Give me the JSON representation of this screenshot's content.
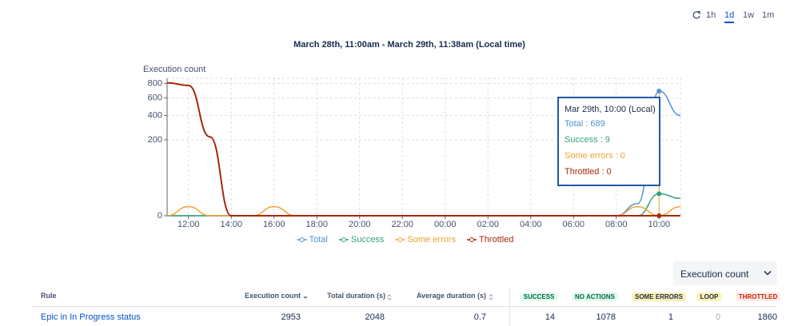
{
  "controls": {
    "ranges": [
      "1h",
      "1d",
      "1w",
      "1m"
    ],
    "selected": 1
  },
  "chart_data": {
    "type": "line",
    "title": "March 28th, 11:00am - March 29th, 11:38am (Local time)",
    "y_label": "Execution count",
    "categories": [
      null,
      "12:00",
      null,
      "14:00",
      null,
      "16:00",
      null,
      "18:00",
      null,
      "20:00",
      null,
      "22:00",
      null,
      "00:00",
      null,
      "02:00",
      null,
      "04:00",
      null,
      "06:00",
      null,
      "08:00",
      null,
      "10:00",
      null
    ],
    "series": [
      {
        "name": "Total",
        "color": "#4a94d4",
        "values": [
          0,
          0,
          0,
          0,
          0,
          0,
          0,
          0,
          0,
          0,
          0,
          0,
          0,
          0,
          0,
          0,
          0,
          0,
          0,
          0,
          0,
          0,
          2,
          689,
          400
        ]
      },
      {
        "name": "Success",
        "color": "#36a27a",
        "values": [
          0,
          0,
          0,
          0,
          0,
          0,
          0,
          0,
          0,
          0,
          0,
          0,
          0,
          0,
          0,
          0,
          0,
          0,
          0,
          0,
          0,
          0,
          0,
          9,
          5
        ]
      },
      {
        "name": "Some errors",
        "color": "#f0a232",
        "values": [
          0,
          1,
          0,
          0,
          0,
          1,
          0,
          0,
          0,
          0,
          0,
          0,
          0,
          0,
          0,
          0,
          0,
          0,
          0,
          0,
          0,
          0,
          1,
          0,
          1
        ]
      },
      {
        "name": "Throttled",
        "color": "#a8280c",
        "values": [
          810,
          770,
          220,
          0,
          0,
          0,
          0,
          0,
          0,
          0,
          0,
          0,
          0,
          0,
          0,
          0,
          0,
          0,
          0,
          0,
          0,
          0,
          0,
          0,
          0
        ]
      }
    ],
    "ylim": [
      0,
      880
    ],
    "yticks": [
      0,
      200,
      400,
      600,
      800
    ],
    "yscale": {
      "type": "pow",
      "exponent": 0.4
    },
    "grid": true,
    "legend": "bottom"
  },
  "tooltip": {
    "header": "Mar 29th, 10:00 (Local)",
    "lines": [
      "Total : 689",
      "Success : 9",
      "Some errors : 0",
      "Throttled : 0"
    ]
  },
  "dropdown": {
    "label": "Execution count"
  },
  "table": {
    "headers": [
      "Rule",
      "Execution count",
      "Total duration (s)",
      "Average duration (s)",
      "SUCCESS",
      "NO ACTIONS",
      "SOME ERRORS",
      "LOOP",
      "THROTTLED"
    ],
    "rows": [
      [
        "Epic in In Progress status",
        2953,
        2048,
        0.7,
        14,
        1078,
        1,
        0,
        1860
      ]
    ]
  }
}
